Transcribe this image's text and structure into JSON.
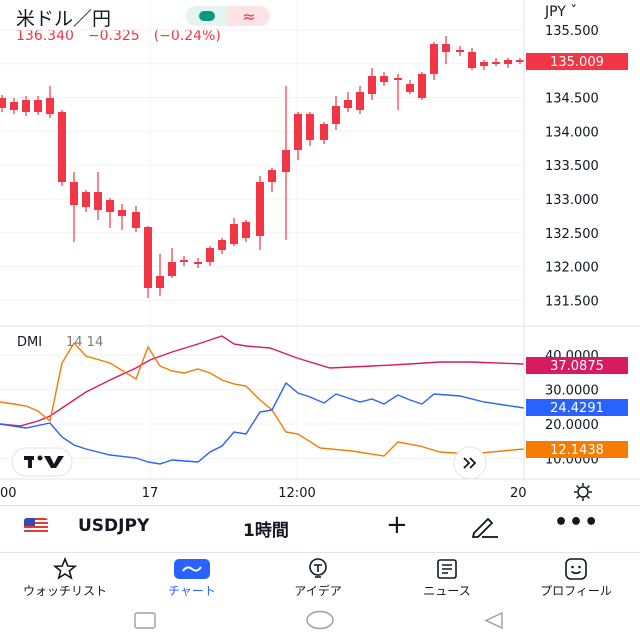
{
  "header": {
    "title": "米ドル／円",
    "price": "136.340",
    "change": "−0.325",
    "change_pct": "(−0.24%)",
    "currency": "JPY ˇ",
    "live_icon": "live-dot-icon",
    "wave_icon": "wave-icon"
  },
  "price_chart": {
    "y_ticks": [
      "135.500",
      "135.000",
      "134.500",
      "134.000",
      "133.500",
      "133.000",
      "132.500",
      "132.000",
      "131.500"
    ],
    "last_price": "135.009",
    "up_color": "#089981",
    "down_color": "#f23645"
  },
  "dmi": {
    "label": "DMI",
    "params": "14 14",
    "y_ticks": [
      "40.0000",
      "30.0000",
      "20.0000",
      "10.0000"
    ],
    "adx_value": "37.0875",
    "plus_di_value": "24.4291",
    "minus_di_value": "12.1438",
    "adx_color": "#d81b60",
    "plus_di_color": "#2962ff",
    "minus_di_color": "#f57c00"
  },
  "time_axis": {
    "labels": [
      "00",
      "17",
      "12:00",
      "20"
    ]
  },
  "toolbar": {
    "symbol": "USDJPY",
    "interval": "1時間",
    "add_label": "+",
    "more_label": "•••"
  },
  "tabs": [
    {
      "label": "ウォッチリスト",
      "icon": "star-icon"
    },
    {
      "label": "チャート",
      "icon": "chart-icon"
    },
    {
      "label": "アイデア",
      "icon": "bulb-icon"
    },
    {
      "label": "ニュース",
      "icon": "news-icon"
    },
    {
      "label": "プロフィール",
      "icon": "smile-icon"
    }
  ]
}
